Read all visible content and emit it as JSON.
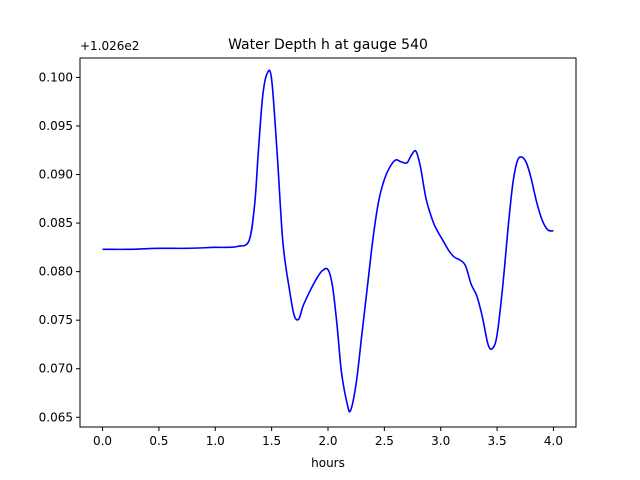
{
  "chart_data": {
    "type": "line",
    "title": "Water Depth h at gauge 540",
    "xlabel": "hours",
    "ylabel": "",
    "offset_label": "+1.026e2",
    "xlim": [
      -0.2,
      4.2
    ],
    "ylim": [
      0.064,
      0.102
    ],
    "xticks": [
      0.0,
      0.5,
      1.0,
      1.5,
      2.0,
      2.5,
      3.0,
      3.5,
      4.0
    ],
    "xtick_labels": [
      "0.0",
      "0.5",
      "1.0",
      "1.5",
      "2.0",
      "2.5",
      "3.0",
      "3.5",
      "4.0"
    ],
    "yticks": [
      0.065,
      0.07,
      0.075,
      0.08,
      0.085,
      0.09,
      0.095,
      0.1
    ],
    "ytick_labels": [
      "0.065",
      "0.070",
      "0.075",
      "0.080",
      "0.085",
      "0.090",
      "0.095",
      "0.100"
    ],
    "grid": false,
    "series": [
      {
        "color": "#0000ff",
        "x": [
          0.0,
          0.25,
          0.5,
          0.75,
          1.0,
          1.1,
          1.2,
          1.3,
          1.35,
          1.38,
          1.42,
          1.46,
          1.5,
          1.55,
          1.6,
          1.66,
          1.7,
          1.74,
          1.78,
          1.84,
          1.9,
          1.95,
          2.0,
          2.04,
          2.08,
          2.12,
          2.17,
          2.2,
          2.25,
          2.3,
          2.35,
          2.4,
          2.45,
          2.5,
          2.55,
          2.6,
          2.65,
          2.7,
          2.74,
          2.78,
          2.82,
          2.87,
          2.93,
          2.97,
          3.02,
          3.07,
          3.12,
          3.17,
          3.22,
          3.27,
          3.32,
          3.37,
          3.42,
          3.46,
          3.5,
          3.55,
          3.6,
          3.64,
          3.68,
          3.72,
          3.76,
          3.8,
          3.85,
          3.9,
          3.95,
          4.0
        ],
        "y": [
          0.0823,
          0.0823,
          0.0824,
          0.0824,
          0.0825,
          0.0825,
          0.0826,
          0.0832,
          0.087,
          0.092,
          0.098,
          0.1004,
          0.0998,
          0.092,
          0.083,
          0.078,
          0.0755,
          0.0751,
          0.0765,
          0.078,
          0.0793,
          0.0801,
          0.0802,
          0.0785,
          0.0745,
          0.0696,
          0.0664,
          0.0657,
          0.0685,
          0.0735,
          0.0785,
          0.0835,
          0.0873,
          0.0895,
          0.0908,
          0.0915,
          0.0913,
          0.0912,
          0.092,
          0.0924,
          0.0908,
          0.0875,
          0.0852,
          0.0842,
          0.0832,
          0.0822,
          0.0815,
          0.0812,
          0.0806,
          0.0787,
          0.0775,
          0.0753,
          0.0725,
          0.0721,
          0.0735,
          0.0785,
          0.0848,
          0.0891,
          0.0914,
          0.0918,
          0.0912,
          0.0897,
          0.0872,
          0.0853,
          0.0843,
          0.0842
        ]
      }
    ]
  }
}
